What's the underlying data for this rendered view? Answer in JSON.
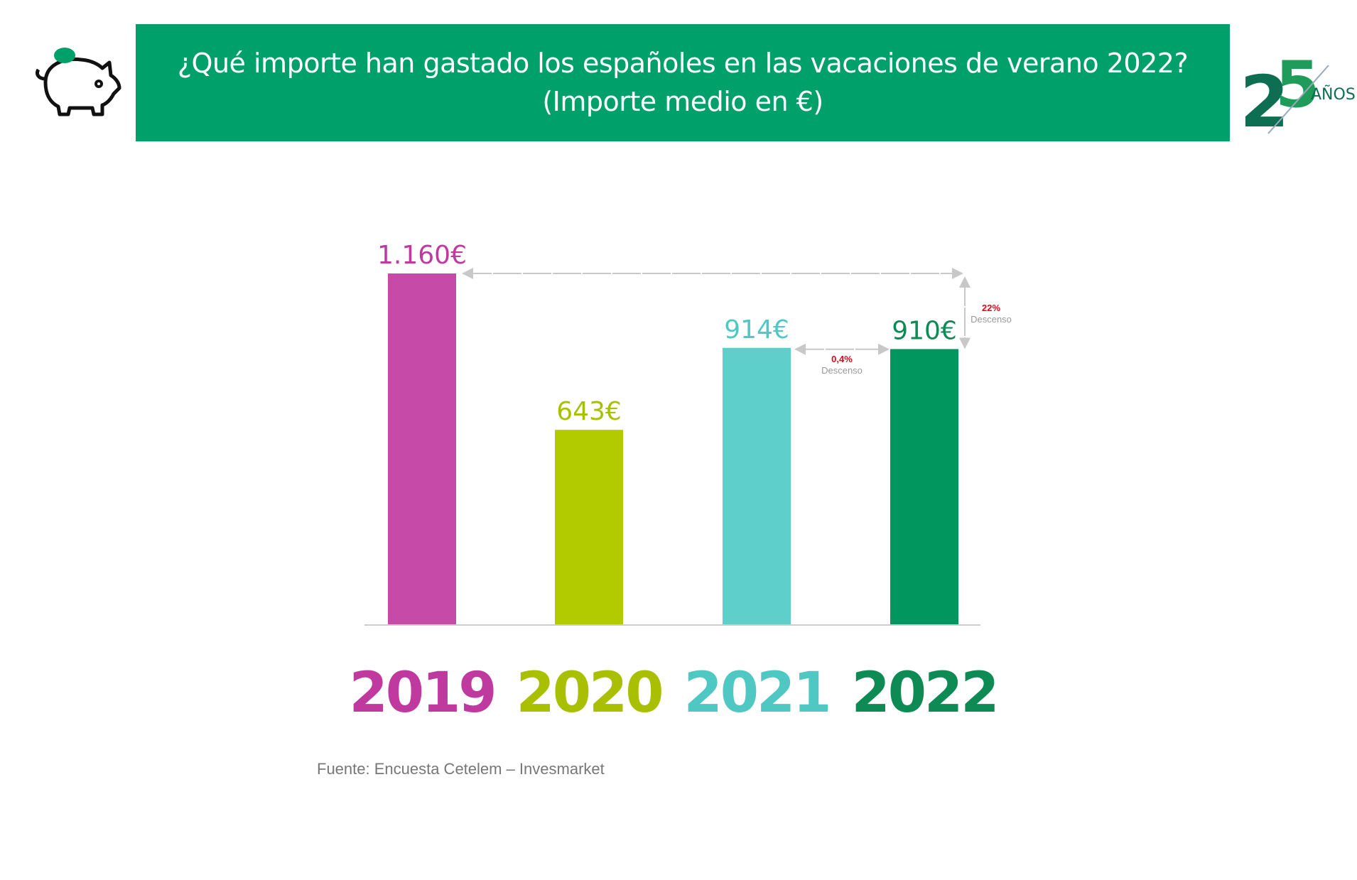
{
  "header": {
    "title_line1": "¿Qué importe han gastado los españoles en las vacaciones de verano 2022?",
    "title_line2": "(Importe medio en €)"
  },
  "logo": {
    "text": "25",
    "subtext": "AÑOS"
  },
  "chart_data": {
    "type": "bar",
    "title": "¿Qué importe han gastado los españoles en las vacaciones de verano 2022? (Importe medio en €)",
    "categories": [
      "2019",
      "2020",
      "2021",
      "2022"
    ],
    "values": [
      1160,
      643,
      914,
      910
    ],
    "data_labels": [
      "1.160€",
      "643€",
      "914€",
      "910€"
    ],
    "colors": [
      "#c64ba8",
      "#b2cb00",
      "#5ecfcb",
      "#00965e"
    ],
    "label_colors": [
      "#c0399f",
      "#a8c000",
      "#4fc8c4",
      "#0e8a55"
    ],
    "ylim": [
      0,
      1160
    ],
    "annotations": [
      {
        "from": "2019",
        "to": "2022",
        "pct": "22%",
        "text": "Descenso"
      },
      {
        "from": "2021",
        "to": "2022",
        "pct": "0,4%",
        "text": "Descenso"
      }
    ]
  },
  "source": "Fuente: Encuesta Cetelem – Invesmarket"
}
